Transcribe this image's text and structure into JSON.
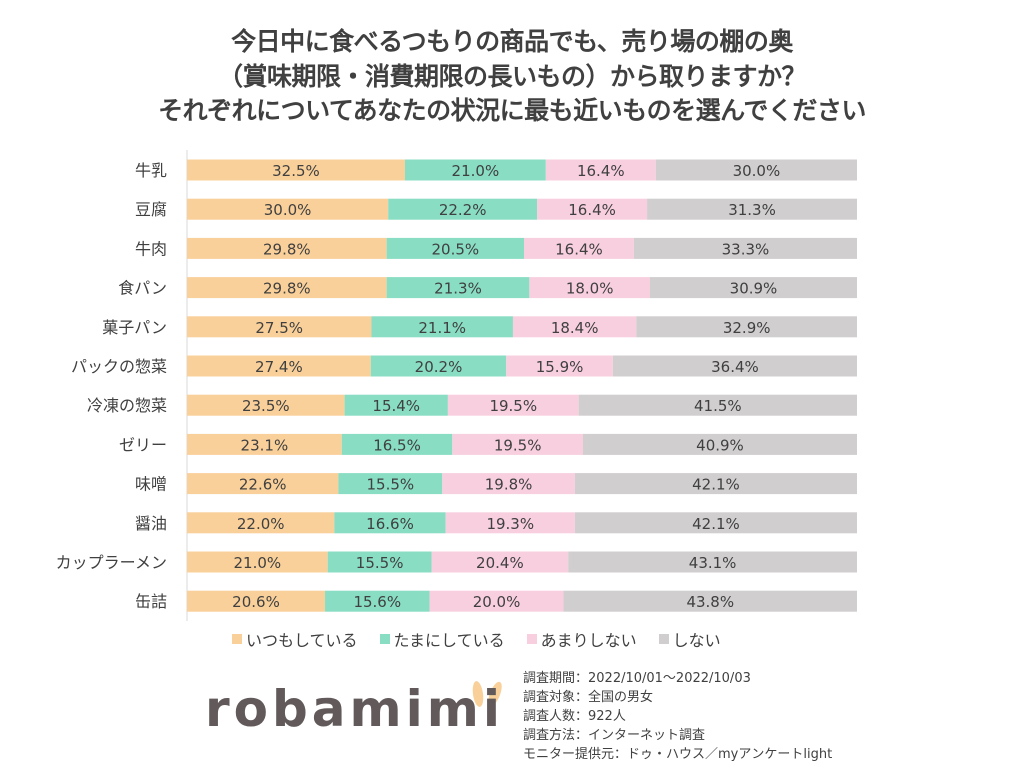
{
  "title_lines": [
    "今日中に食べるつもりの商品でも、売り場の棚の奥",
    "（賞味期限・消費期限の長いもの）から取りますか？",
    "それぞれについてあなたの状況に最も近いものを選んでください"
  ],
  "chart_data": {
    "type": "bar",
    "orientation": "horizontal",
    "stacked": "percent",
    "categories": [
      "牛乳",
      "豆腐",
      "牛肉",
      "食パン",
      "菓子パン",
      "パックの惣菜",
      "冷凍の惣菜",
      "ゼリー",
      "味噌",
      "醤油",
      "カップラーメン",
      "缶詰"
    ],
    "series": [
      {
        "name": "いつもしている",
        "color": "#F9D09A",
        "values": [
          32.5,
          30.0,
          29.8,
          29.8,
          27.5,
          27.4,
          23.5,
          23.1,
          22.6,
          22.0,
          21.0,
          20.6
        ]
      },
      {
        "name": "たまにしている",
        "color": "#88DDC3",
        "values": [
          21.0,
          22.2,
          20.5,
          21.3,
          21.1,
          20.2,
          15.4,
          16.5,
          15.5,
          16.6,
          15.5,
          15.6
        ]
      },
      {
        "name": "あまりしない",
        "color": "#F8CFDF",
        "values": [
          16.4,
          16.4,
          16.4,
          18.0,
          18.4,
          15.9,
          19.5,
          19.5,
          19.8,
          19.3,
          20.4,
          20.0
        ]
      },
      {
        "name": "しない",
        "color": "#D0CECE",
        "values": [
          30.0,
          31.3,
          33.3,
          30.9,
          32.9,
          36.4,
          41.5,
          40.9,
          42.1,
          42.1,
          43.1,
          43.8
        ]
      }
    ],
    "value_format": "%",
    "legend_position": "bottom",
    "grid": false
  },
  "logo": {
    "text": "robamimi",
    "ear_color": "#F9D09A"
  },
  "survey_info": [
    "調査期間：2022/10/01～2022/10/03",
    "調査対象：全国の男女",
    "調査人数：922人",
    "調査方法：インターネット調査",
    "モニター提供元：ドゥ・ハウス／myアンケートlight"
  ]
}
